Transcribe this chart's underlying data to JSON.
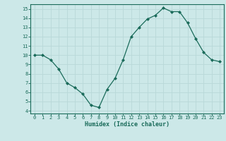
{
  "x": [
    0,
    1,
    2,
    3,
    4,
    5,
    6,
    7,
    8,
    9,
    10,
    11,
    12,
    13,
    14,
    15,
    16,
    17,
    18,
    19,
    20,
    21,
    22,
    23
  ],
  "y": [
    10,
    10,
    9.5,
    8.5,
    7,
    6.5,
    5.8,
    4.6,
    4.35,
    6.3,
    7.5,
    9.5,
    12,
    13,
    13.9,
    14.3,
    15.1,
    14.7,
    14.7,
    13.5,
    11.8,
    10.3,
    9.5,
    9.3
  ],
  "xlabel": "Humidex (Indice chaleur)",
  "xlim": [
    -0.5,
    23.5
  ],
  "ylim": [
    3.7,
    15.5
  ],
  "yticks": [
    4,
    5,
    6,
    7,
    8,
    9,
    10,
    11,
    12,
    13,
    14,
    15
  ],
  "xticks": [
    0,
    1,
    2,
    3,
    4,
    5,
    6,
    7,
    8,
    9,
    10,
    11,
    12,
    13,
    14,
    15,
    16,
    17,
    18,
    19,
    20,
    21,
    22,
    23
  ],
  "line_color": "#1a6b5a",
  "marker_color": "#1a6b5a",
  "bg_color": "#cce8e8",
  "grid_color": "#b8d8d8",
  "tick_color": "#1a6b5a",
  "label_color": "#1a6b5a"
}
